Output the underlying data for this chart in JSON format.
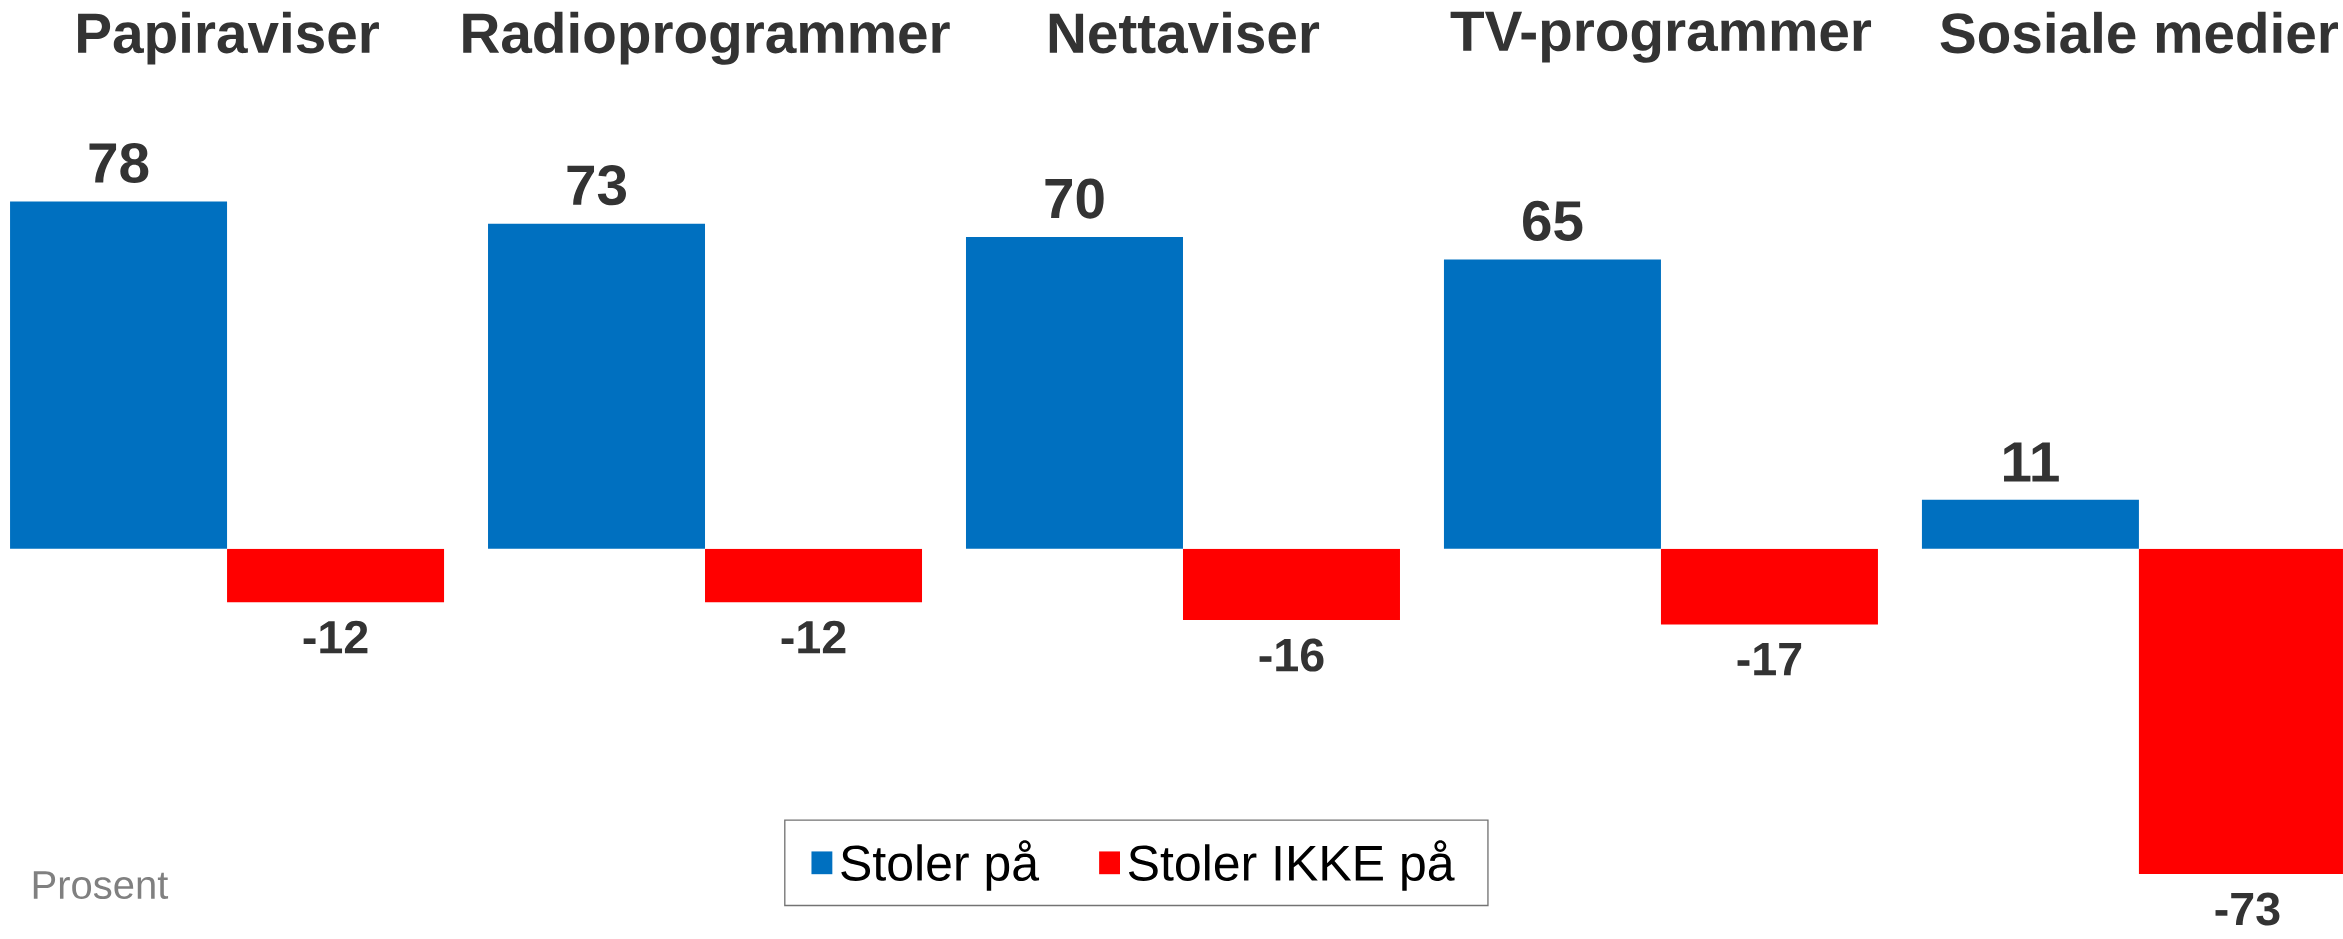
{
  "chart_data": {
    "type": "bar",
    "categories": [
      "Papiraviser",
      "Radioprogrammer",
      "Nettaviser",
      "TV-programmer",
      "Sosiale medier"
    ],
    "series": [
      {
        "name": "Stoler på",
        "color": "#0070c0",
        "values": [
          78,
          73,
          70,
          65,
          11
        ]
      },
      {
        "name": "Stoler IKKE på",
        "color": "#ff0000",
        "values": [
          -12,
          -12,
          -16,
          -17,
          -73
        ]
      }
    ],
    "data_labels": true,
    "legend": "bottom",
    "annotations": [
      "Prosent"
    ]
  }
}
